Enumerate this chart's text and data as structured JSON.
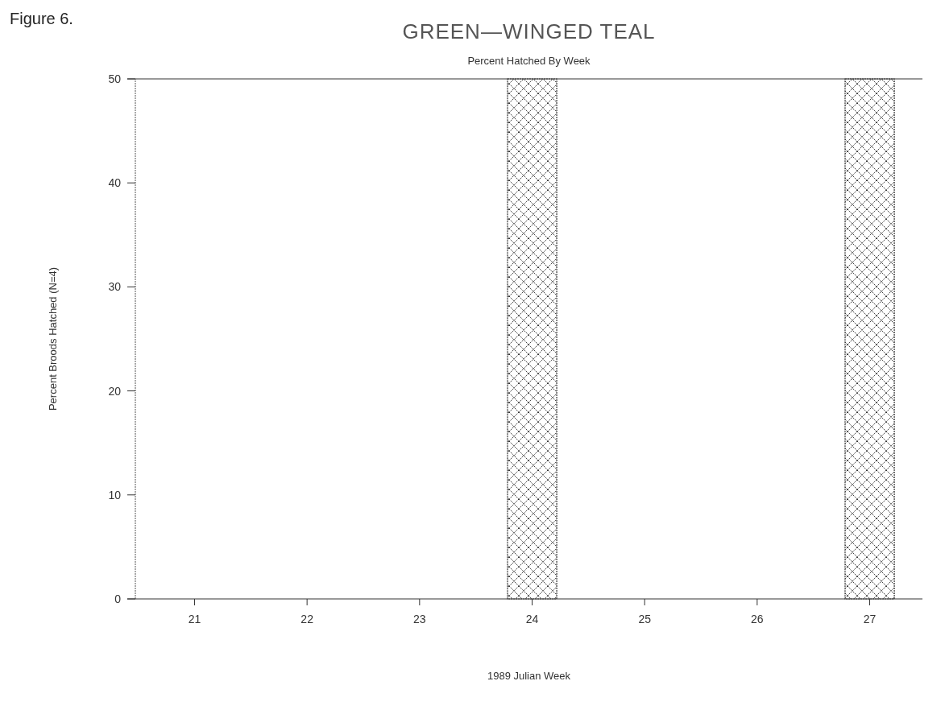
{
  "chart_data": {
    "type": "bar",
    "title": "GREEN—WINGED TEAL",
    "subtitle": "Percent Hatched By Week",
    "xlabel": "1989 Julian Week",
    "ylabel": "Percent Broods Hatched (N=4)",
    "categories": [
      "21",
      "22",
      "23",
      "24",
      "25",
      "26",
      "27"
    ],
    "values": [
      0,
      0,
      0,
      50,
      0,
      0,
      50
    ],
    "color": "#333333",
    "ylim": [
      0,
      50
    ],
    "yticks": [
      0,
      10,
      20,
      30,
      40,
      50
    ],
    "grid": false,
    "annotations": [
      "Figure 6."
    ]
  }
}
